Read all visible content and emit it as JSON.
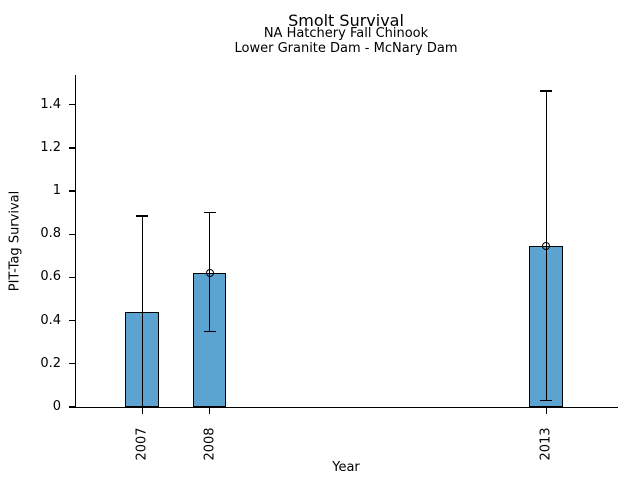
{
  "chart_data": {
    "type": "bar",
    "title": "Smolt Survival",
    "subtitle1": "NA Hatchery Fall Chinook",
    "subtitle2": "Lower Granite Dam - McNary Dam",
    "xlabel": "Year",
    "ylabel": "PIT-Tag Survival",
    "categories": [
      "2007",
      "2008",
      "2013"
    ],
    "x": [
      2007,
      2008,
      2013
    ],
    "values": [
      0.44,
      0.62,
      0.745
    ],
    "error_low": [
      0.0,
      0.35,
      0.03
    ],
    "error_high": [
      0.885,
      0.9,
      1.465
    ],
    "markers": [
      false,
      true,
      true
    ],
    "marker_style": "open-circle",
    "bar_width_years": 0.5,
    "xlim": [
      2006.0,
      2014.05
    ],
    "ylim": [
      0,
      1.538
    ],
    "yticks": [
      0,
      0.2,
      0.4,
      0.6,
      0.8,
      1.0,
      1.2,
      1.4
    ],
    "ytick_labels": [
      "0",
      "0.2",
      "0.4",
      "0.6",
      "0.8",
      "1",
      "1.2",
      "1.4"
    ],
    "bar_color": "#5BA3D0",
    "bar_edge_color": "#000000",
    "axis_color": "#000000",
    "grid": false,
    "legend": "none",
    "background": "#FFFFFF"
  }
}
